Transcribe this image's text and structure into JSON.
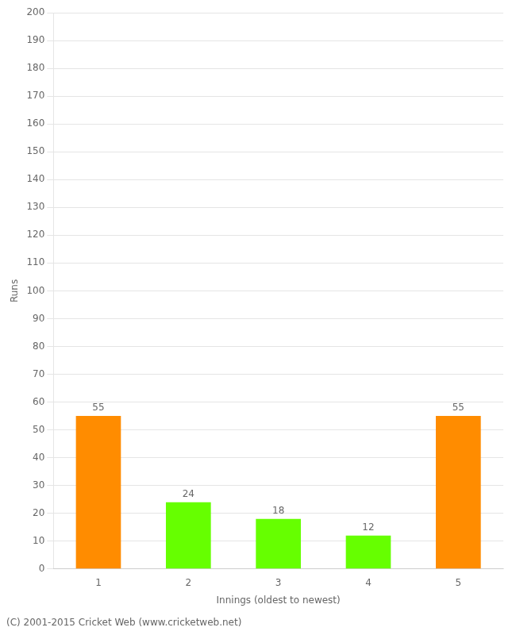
{
  "chart_data": {
    "type": "bar",
    "categories": [
      "1",
      "2",
      "3",
      "4",
      "5"
    ],
    "values": [
      55,
      24,
      18,
      12,
      55
    ],
    "colors": [
      "#ff8c00",
      "#66ff00",
      "#66ff00",
      "#66ff00",
      "#ff8c00"
    ],
    "xlabel": "Innings (oldest to newest)",
    "ylabel": "Runs",
    "ylim": [
      0,
      200
    ],
    "yticks": [
      0,
      10,
      20,
      30,
      40,
      50,
      60,
      70,
      80,
      90,
      100,
      110,
      120,
      130,
      140,
      150,
      160,
      170,
      180,
      190,
      200
    ],
    "grid": true,
    "data_labels": true,
    "annotations": [
      "(C) 2001-2015 Cricket Web (www.cricketweb.net)"
    ]
  }
}
